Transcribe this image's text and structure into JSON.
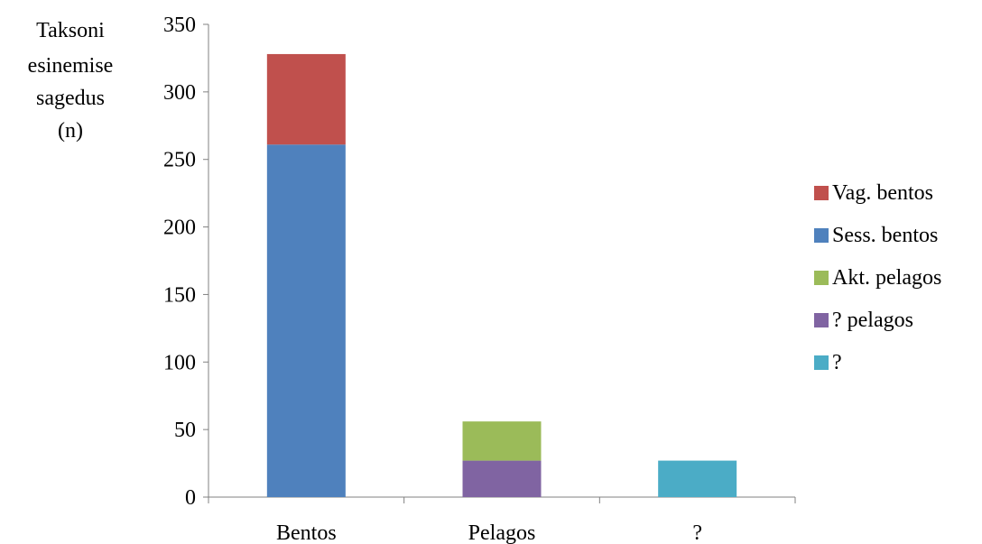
{
  "chart_data": {
    "type": "bar",
    "stacked": true,
    "title": "",
    "ylabel_lines": [
      "Taksoni",
      "esinemise",
      "sagedus",
      "(n)"
    ],
    "xlabel": "",
    "categories": [
      "Bentos",
      "Pelagos",
      "?"
    ],
    "ylim": [
      0,
      350
    ],
    "yticks": [
      0,
      50,
      100,
      150,
      200,
      250,
      300,
      350
    ],
    "grid": false,
    "legend_position": "right",
    "series": [
      {
        "name": "Sess. bentos",
        "color": "#4F81BD",
        "values": [
          261,
          0,
          0
        ]
      },
      {
        "name": "Vag. bentos",
        "color": "#C0504D",
        "values": [
          67,
          0,
          0
        ]
      },
      {
        "name": "? pelagos",
        "color": "#8064A2",
        "values": [
          0,
          27,
          0
        ]
      },
      {
        "name": "Akt. pelagos",
        "color": "#9BBB59",
        "values": [
          0,
          29,
          0
        ]
      },
      {
        "name": "?",
        "color": "#4BACC6",
        "values": [
          0,
          0,
          27
        ]
      }
    ],
    "legend_order": [
      "Vag. bentos",
      "Sess. bentos",
      "Akt. pelagos",
      "? pelagos",
      "?"
    ]
  }
}
